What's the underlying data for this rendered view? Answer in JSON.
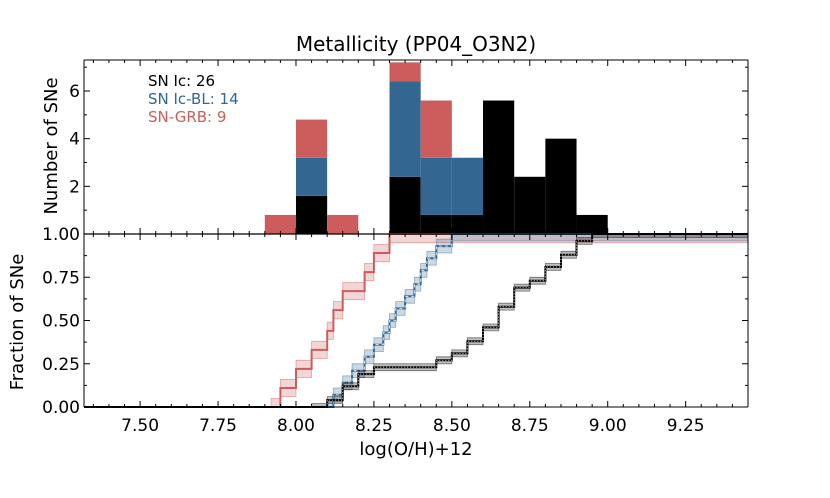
{
  "chart_data": [
    {
      "type": "bar",
      "subtype": "stacked-histogram",
      "title": "Metallicity (PP04_O3N2)",
      "xlabel": "",
      "ylabel": "Number of SNe",
      "xlim": [
        7.32,
        9.45
      ],
      "ylim": [
        0,
        7.3
      ],
      "yticks": [
        2,
        4,
        6
      ],
      "bin_edges": [
        7.9,
        8.0,
        8.1,
        8.2,
        8.3,
        8.4,
        8.5,
        8.6,
        8.7,
        8.8,
        8.9,
        9.0
      ],
      "series": [
        {
          "name": "SN Ic",
          "legend": "SN Ic: 26",
          "color": "#000000",
          "values": [
            0,
            1.6,
            0,
            0,
            2.4,
            0.8,
            0.8,
            5.6,
            2.4,
            4.0,
            0.8
          ]
        },
        {
          "name": "SN Ic-BL",
          "legend": "SN Ic-BL: 14",
          "color": "#336791",
          "values": [
            0,
            1.6,
            0,
            0,
            4.0,
            2.4,
            2.4,
            0,
            0,
            0,
            0
          ]
        },
        {
          "name": "SN-GRB",
          "legend": "SN-GRB: 9",
          "color": "#cd5c5c",
          "values": [
            0.8,
            1.6,
            0.8,
            0,
            0.8,
            2.4,
            0,
            0,
            0,
            0,
            0
          ]
        }
      ],
      "legend_position": "top-left"
    },
    {
      "type": "line",
      "subtype": "cumulative-fraction",
      "xlabel": "log(O/H)+12",
      "ylabel": "Fraction of SNe",
      "xlim": [
        7.32,
        9.45
      ],
      "ylim": [
        0,
        1.0
      ],
      "xticks": [
        "7.50",
        "7.75",
        "8.00",
        "8.25",
        "8.50",
        "8.75",
        "9.00",
        "9.25"
      ],
      "yticks": [
        "0.00",
        "0.25",
        "0.50",
        "0.75",
        "1.00"
      ],
      "series": [
        {
          "name": "SN-GRB",
          "color": "#cd5c5c",
          "band": 0.05,
          "x": [
            7.92,
            7.95,
            8.0,
            8.05,
            8.1,
            8.12,
            8.15,
            8.22,
            8.25,
            8.3,
            8.35,
            8.38,
            8.42
          ],
          "y": [
            0.0,
            0.11,
            0.22,
            0.33,
            0.44,
            0.56,
            0.67,
            0.78,
            0.89,
            1.0,
            1.0,
            1.0,
            1.0
          ]
        },
        {
          "name": "SN Ic-BL",
          "color": "#336791",
          "band": 0.04,
          "x": [
            8.1,
            8.12,
            8.15,
            8.18,
            8.22,
            8.25,
            8.28,
            8.3,
            8.32,
            8.35,
            8.38,
            8.4,
            8.42,
            8.45,
            8.5
          ],
          "y": [
            0.0,
            0.07,
            0.14,
            0.21,
            0.29,
            0.36,
            0.43,
            0.5,
            0.57,
            0.64,
            0.71,
            0.79,
            0.86,
            0.93,
            1.0
          ]
        },
        {
          "name": "SN Ic",
          "color": "#000000",
          "band": 0.02,
          "x": [
            8.05,
            8.1,
            8.15,
            8.2,
            8.25,
            8.3,
            8.35,
            8.4,
            8.45,
            8.5,
            8.55,
            8.6,
            8.65,
            8.7,
            8.75,
            8.8,
            8.85,
            8.9,
            8.95
          ],
          "y": [
            0.0,
            0.04,
            0.12,
            0.19,
            0.23,
            0.23,
            0.23,
            0.23,
            0.27,
            0.31,
            0.38,
            0.46,
            0.58,
            0.69,
            0.73,
            0.81,
            0.88,
            0.96,
            1.0
          ]
        }
      ]
    }
  ]
}
